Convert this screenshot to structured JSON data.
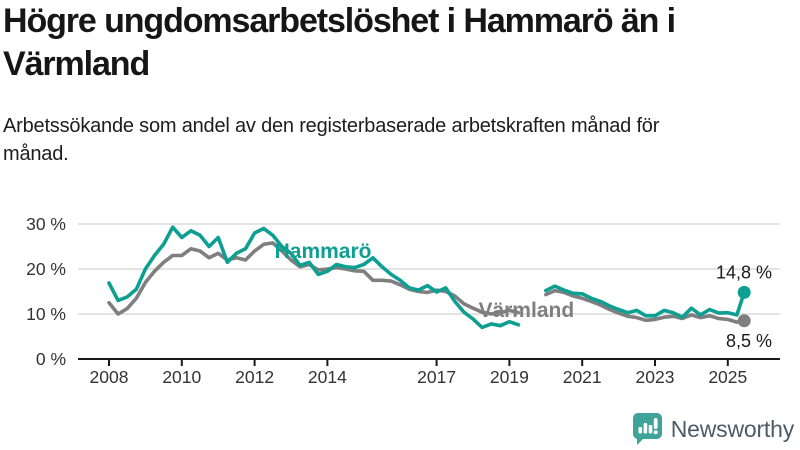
{
  "header": {
    "title": "Högre ungdomsarbetslöshet i Hammarö än i Värmland",
    "subtitle": "Arbetssökande som andel av den registerbaserade arbetskraften månad för månad."
  },
  "footer": {
    "brand": "Newsworthy",
    "brand_icon": "newsworthy-chart-bubble-icon",
    "brand_icon_color": "#3fa39b",
    "brand_text_color": "#4b5c69"
  },
  "chart_data": {
    "type": "line",
    "x_unit": "decimal_year",
    "note_visible_gap": "no data drawn between 2019.25 and 2020.0 (nulls)",
    "x": [
      2008.0,
      2008.25,
      2008.5,
      2008.75,
      2009.0,
      2009.25,
      2009.5,
      2009.75,
      2010.0,
      2010.25,
      2010.5,
      2010.75,
      2011.0,
      2011.25,
      2011.5,
      2011.75,
      2012.0,
      2012.25,
      2012.5,
      2012.75,
      2013.0,
      2013.25,
      2013.5,
      2013.75,
      2014.0,
      2014.25,
      2014.5,
      2014.75,
      2015.0,
      2015.25,
      2015.5,
      2015.75,
      2016.0,
      2016.25,
      2016.5,
      2016.75,
      2017.0,
      2017.25,
      2017.5,
      2017.75,
      2018.0,
      2018.25,
      2018.5,
      2018.75,
      2019.0,
      2019.25,
      2019.5,
      2019.75,
      2020.0,
      2020.25,
      2020.5,
      2020.75,
      2021.0,
      2021.25,
      2021.5,
      2021.75,
      2022.0,
      2022.25,
      2022.5,
      2022.75,
      2023.0,
      2023.25,
      2023.5,
      2023.75,
      2024.0,
      2024.25,
      2024.5,
      2024.75,
      2025.0,
      2025.25,
      2025.45
    ],
    "series": [
      {
        "name": "Hammarö",
        "color": "#0d9f92",
        "end_label": "14,8 %",
        "end_value": 14.8,
        "end_label_position": "above",
        "label_pos": {
          "x": 2012.55,
          "y": 22.4
        },
        "values": [
          16.9,
          13.0,
          13.8,
          15.5,
          20.0,
          23.0,
          25.5,
          29.3,
          27.0,
          28.5,
          27.5,
          25.0,
          27.0,
          21.5,
          23.5,
          24.5,
          28.0,
          29.0,
          27.5,
          25.0,
          23.5,
          20.8,
          21.5,
          18.8,
          19.5,
          21.0,
          20.5,
          20.3,
          21.0,
          22.5,
          20.5,
          18.8,
          17.5,
          15.8,
          15.3,
          16.3,
          14.9,
          15.8,
          12.8,
          10.4,
          8.9,
          7.0,
          7.8,
          7.4,
          8.3,
          7.6,
          null,
          null,
          15.2,
          16.2,
          15.3,
          14.6,
          14.5,
          13.5,
          12.8,
          11.8,
          11.0,
          10.3,
          10.8,
          9.6,
          9.6,
          10.8,
          10.3,
          9.3,
          11.3,
          9.8,
          11.0,
          10.2,
          10.3,
          9.8,
          14.8
        ]
      },
      {
        "name": "Värmland",
        "color": "#7f7f7f",
        "end_label": "8,5 %",
        "end_value": 8.5,
        "end_label_position": "below",
        "label_pos": {
          "x": 2018.15,
          "y": 9.3
        },
        "values": [
          12.5,
          10.0,
          11.2,
          13.5,
          17.0,
          19.5,
          21.5,
          23.0,
          23.0,
          24.5,
          24.0,
          22.5,
          23.5,
          22.0,
          22.5,
          22.0,
          24.0,
          25.5,
          25.8,
          24.0,
          22.0,
          20.5,
          21.0,
          19.8,
          20.0,
          20.3,
          20.0,
          19.6,
          19.5,
          17.5,
          17.5,
          17.3,
          16.5,
          15.5,
          15.0,
          14.8,
          15.3,
          15.0,
          14.0,
          12.3,
          11.3,
          10.4,
          10.0,
          10.3,
          10.8,
          10.3,
          null,
          null,
          14.3,
          15.2,
          14.8,
          14.0,
          13.5,
          12.8,
          12.0,
          11.0,
          10.2,
          9.5,
          9.2,
          8.6,
          8.8,
          9.3,
          9.5,
          9.0,
          9.8,
          9.2,
          9.6,
          9.0,
          8.8,
          8.2,
          8.5
        ]
      }
    ],
    "yticks": [
      {
        "value": 0,
        "label": "0 %"
      },
      {
        "value": 10,
        "label": "10 %"
      },
      {
        "value": 20,
        "label": "20 %"
      },
      {
        "value": 30,
        "label": "30 %"
      }
    ],
    "xticks": [
      {
        "value": 2008,
        "label": "2008"
      },
      {
        "value": 2010,
        "label": "2010"
      },
      {
        "value": 2012,
        "label": "2012"
      },
      {
        "value": 2014,
        "label": "2014"
      },
      {
        "value": 2017,
        "label": "2017"
      },
      {
        "value": 2019,
        "label": "2019"
      },
      {
        "value": 2021,
        "label": "2021"
      },
      {
        "value": 2023,
        "label": "2023"
      },
      {
        "value": 2025,
        "label": "2025"
      }
    ],
    "ylim": [
      0,
      33
    ],
    "xlim": [
      2007.1,
      2026.4
    ],
    "grid": "horizontal",
    "legend_position": "inline-labels-on-lines",
    "colors": {
      "grid": "#dcdcdc",
      "axis": "#1a1a1a",
      "tick_label": "#333333",
      "end_label": "#1a1a1a"
    }
  }
}
